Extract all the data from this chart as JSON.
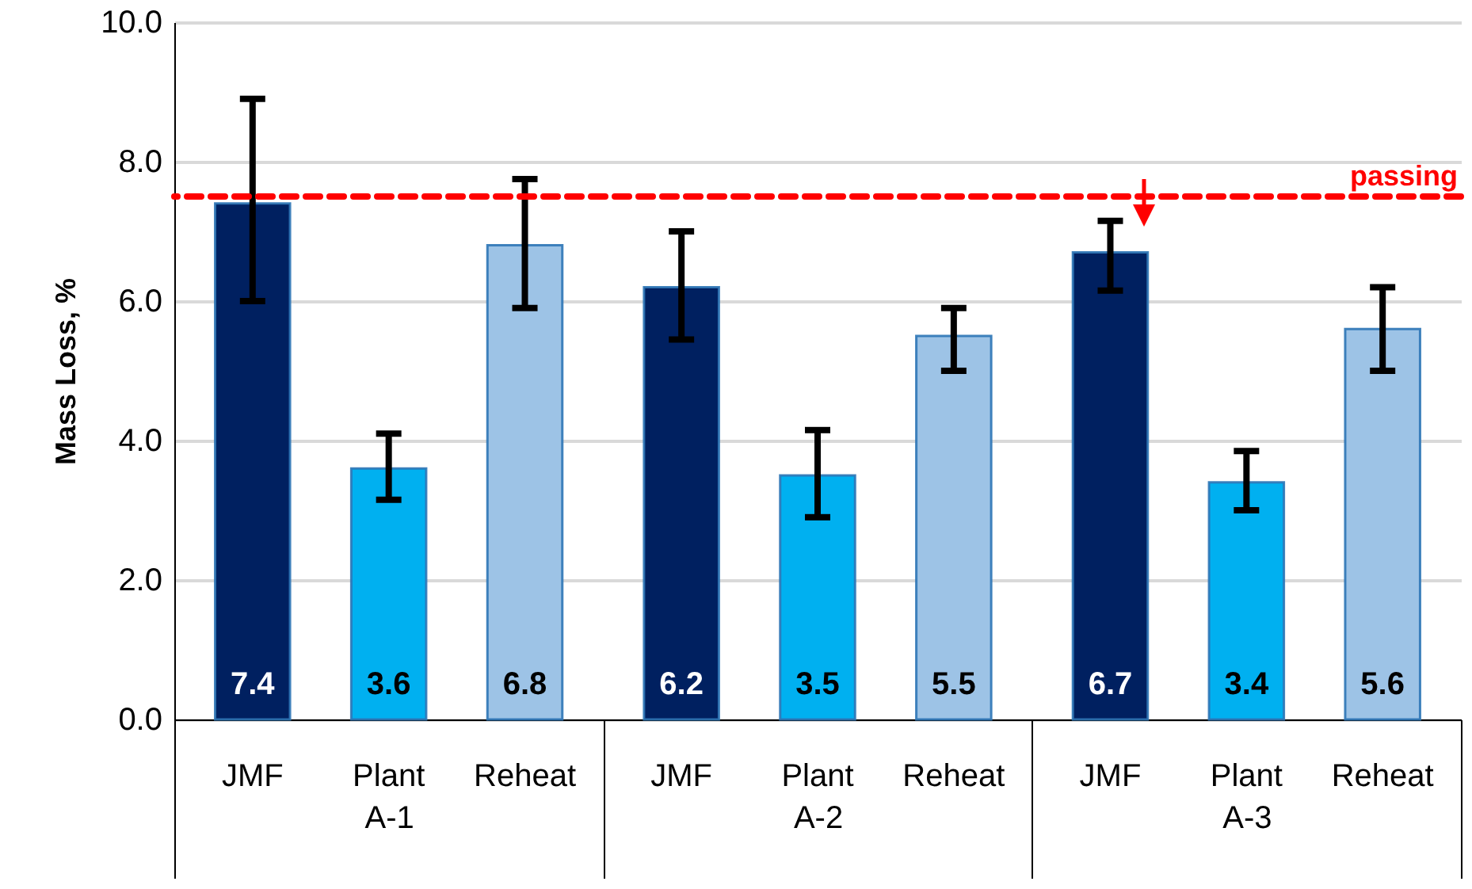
{
  "chart_data": {
    "type": "bar",
    "ylabel": "Mass Loss, %",
    "categories": [
      "A-1",
      "A-2",
      "A-3"
    ],
    "series": [
      {
        "name": "JMF",
        "color": "#002060",
        "values": [
          7.4,
          6.2,
          6.7
        ],
        "errors": [
          [
            6.0,
            8.9
          ],
          [
            5.45,
            7.0
          ],
          [
            6.15,
            7.15
          ]
        ]
      },
      {
        "name": "Plant",
        "color": "#00b0f0",
        "values": [
          3.6,
          3.5,
          3.4
        ],
        "errors": [
          [
            3.15,
            4.1
          ],
          [
            2.9,
            4.15
          ],
          [
            3.0,
            3.85
          ]
        ]
      },
      {
        "name": "Reheat",
        "color": "#9dc3e6",
        "values": [
          6.8,
          5.5,
          5.6
        ],
        "errors": [
          [
            5.9,
            7.75
          ],
          [
            5.0,
            5.9
          ],
          [
            5.0,
            6.2
          ]
        ]
      }
    ],
    "ylim": [
      0,
      10
    ],
    "yticks": [
      {
        "value": 0,
        "label": "0.0"
      },
      {
        "value": 2,
        "label": "2.0"
      },
      {
        "value": 4,
        "label": "4.0"
      },
      {
        "value": 6,
        "label": "6.0"
      },
      {
        "value": 8,
        "label": "8.0"
      },
      {
        "value": 10,
        "label": "10.0"
      }
    ],
    "ref_lines": [
      {
        "axis": "y",
        "value": 7.5,
        "label": "passing",
        "color": "#ff0000",
        "line_style": "dashed"
      }
    ],
    "data_labels": true,
    "grid": "y"
  }
}
